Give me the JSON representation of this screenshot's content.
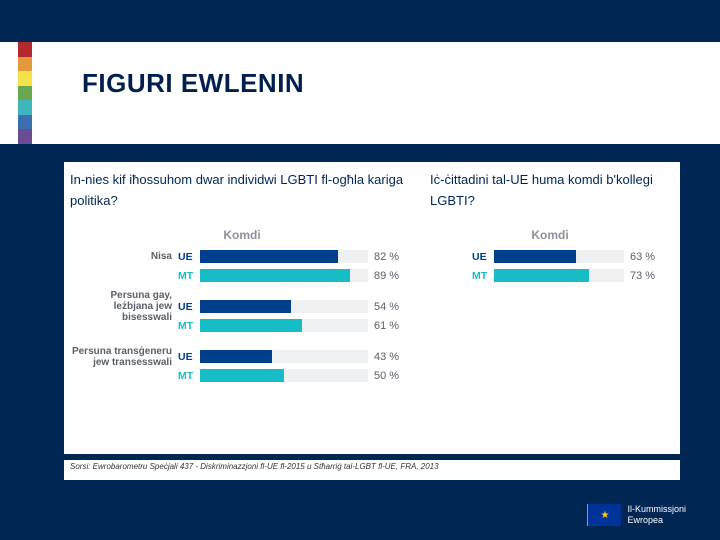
{
  "colors": {
    "page_bg": "#002654",
    "panel_bg": "#ffffff",
    "title_color": "#001f4d",
    "ue_color": "#003f8c",
    "mt_color": "#16bdc7",
    "track_bg": "#eef0f2",
    "muted_text": "#8d9299",
    "rainbow": [
      "#b2292e",
      "#e29a3d",
      "#f3e24b",
      "#6aa84f",
      "#3fb6bd",
      "#3c6fb1",
      "#6a4c93"
    ]
  },
  "title": "FIGURI EWLENIN",
  "question_left": "In-nies kif iħossuhom dwar individwi LGBTI fl-ogħla kariga politika?",
  "question_right": "Iċ-ċittadini tal-UE huma komdi b'kollegi LGBTI?",
  "subheader": "Komdi",
  "geo_labels": {
    "ue": "UE",
    "mt": "MT"
  },
  "left_chart": {
    "xlim": [
      0,
      100
    ],
    "groups": [
      {
        "category": "Nisa",
        "ue": 82,
        "mt": 89
      },
      {
        "category": "Persuna gay, leżbjana jew bisesswali",
        "ue": 54,
        "mt": 61
      },
      {
        "category": "Persuna transġeneru jew transesswali",
        "ue": 43,
        "mt": 50
      }
    ]
  },
  "right_chart": {
    "xlim": [
      0,
      100
    ],
    "groups": [
      {
        "category": "",
        "ue": 63,
        "mt": 73
      }
    ]
  },
  "source": "Sorsi: Ewrobarometru Speċjali 437 - Diskriminazzjoni fl-UE fl-2015 u Stħarriġ tal-LGBT fl-UE, FRA, 2013",
  "ec_logo": {
    "line1": "Il-Kummissjoni",
    "line2": "Ewropea"
  }
}
